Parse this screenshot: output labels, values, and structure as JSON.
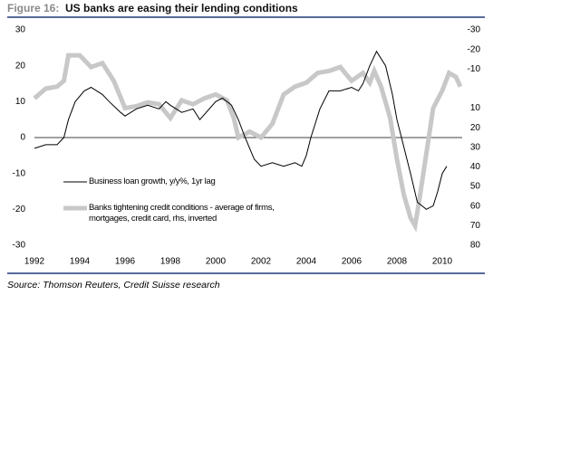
{
  "chart_data": {
    "type": "line",
    "figure_label": "Figure 16:",
    "title": "US banks are easing their lending conditions",
    "source": "Source: Thomson Reuters, Credit Suisse research",
    "xlim": [
      1992,
      2011
    ],
    "xticks": [
      1992,
      1994,
      1996,
      1998,
      2000,
      2002,
      2004,
      2006,
      2008,
      2010
    ],
    "ylim": [
      -30,
      30
    ],
    "yticks": [
      -30,
      -20,
      -10,
      0,
      10,
      20,
      30
    ],
    "y2lim": [
      80,
      -30
    ],
    "y2ticks": [
      -30,
      -20,
      -10,
      10,
      20,
      30,
      40,
      50,
      60,
      70,
      80
    ],
    "grid": false,
    "series": [
      {
        "name": "Business loan growth, y/y%, 1yr lag",
        "color": "#000000",
        "width": 1,
        "x": [
          1992,
          1992.5,
          1993,
          1993.3,
          1993.5,
          1993.8,
          1994.2,
          1994.5,
          1995,
          1995.3,
          1995.8,
          1996,
          1996.5,
          1997,
          1997.5,
          1997.8,
          1998,
          1998.5,
          1999,
          1999.3,
          2000,
          2000.3,
          2000.7,
          2001,
          2001.3,
          2001.7,
          2002,
          2002.5,
          2003,
          2003.5,
          2003.8,
          2004,
          2004.2,
          2004.6,
          2005,
          2005.5,
          2006,
          2006.3,
          2006.5,
          2006.8,
          2007.1,
          2007.5,
          2007.8,
          2008,
          2008.2,
          2008.6,
          2008.9,
          2009.3,
          2009.6,
          2009.8,
          2010,
          2010.2
        ],
        "values": [
          -3,
          -2,
          -2,
          0,
          5,
          10,
          13,
          14,
          12,
          10,
          7,
          6,
          8,
          9,
          8,
          10,
          9,
          7,
          8,
          5,
          10,
          11,
          9,
          5,
          0,
          -6,
          -8,
          -7,
          -8,
          -7,
          -8,
          -5,
          0,
          8,
          13,
          13,
          14,
          13,
          15,
          20,
          24,
          20,
          12,
          5,
          0,
          -10,
          -18,
          -20,
          -19,
          -15,
          -10,
          -8
        ]
      },
      {
        "name": "Banks tightening credit conditions - average of firms, mortgages, credit card, rhs, inverted",
        "color": "#c8c8c8",
        "width": 5,
        "axis": "y2",
        "x": [
          1992,
          1992.5,
          1993,
          1993.3,
          1993.5,
          1994,
          1994.5,
          1995,
          1995.5,
          1996,
          1996.5,
          1997,
          1997.5,
          1998,
          1998.5,
          1999,
          1999.5,
          2000,
          2000.5,
          2000.8,
          2001,
          2001.5,
          2002,
          2002.5,
          2003,
          2003.5,
          2004,
          2004.5,
          2005,
          2005.5,
          2006,
          2006.5,
          2006.8,
          2007,
          2007.3,
          2007.7,
          2008,
          2008.3,
          2008.6,
          2008.8,
          2009,
          2009.3,
          2009.6,
          2010,
          2010.3,
          2010.6,
          2010.8
        ],
        "values": [
          5,
          0,
          -1,
          -4,
          -17,
          -17,
          -11,
          -13,
          -4,
          10,
          9,
          7,
          8,
          15,
          6,
          8,
          5,
          3,
          6,
          15,
          25,
          22,
          25,
          18,
          3,
          -1,
          -3,
          -8,
          -9,
          -11,
          -4,
          -8,
          -3,
          -9,
          -1,
          15,
          36,
          54,
          66,
          70,
          56,
          33,
          10,
          1,
          -8,
          -6,
          -1
        ]
      }
    ]
  }
}
